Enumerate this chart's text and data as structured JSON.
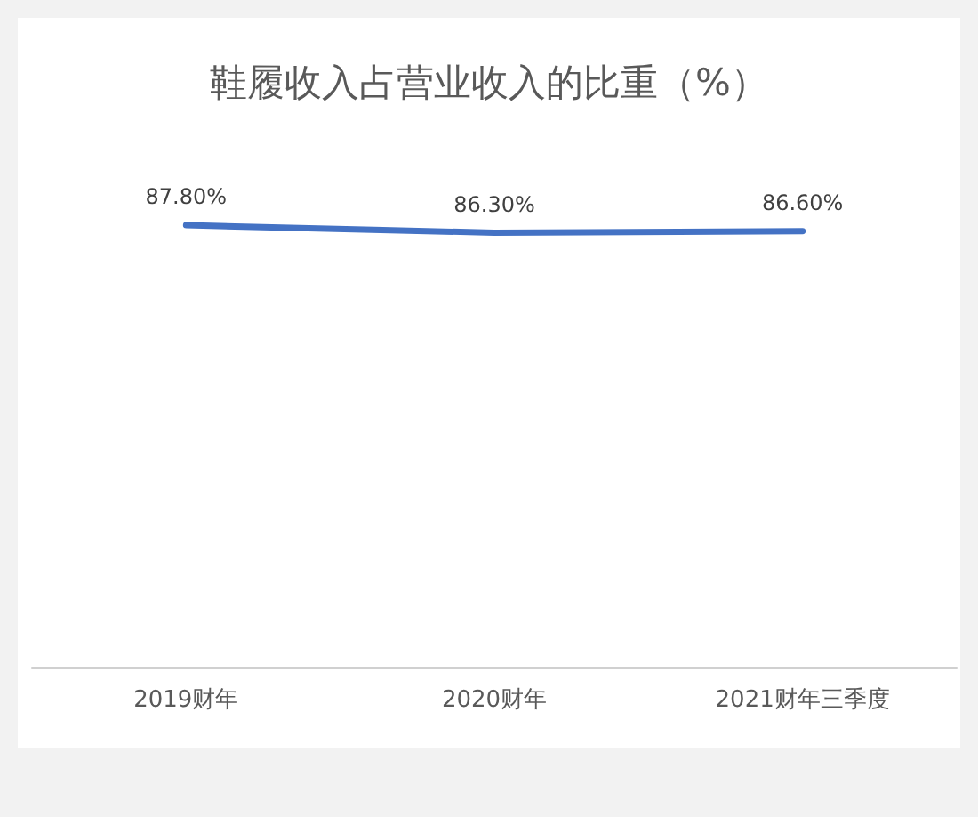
{
  "chart_data": {
    "type": "line",
    "title": "鞋履收入占营业收入的比重（%）",
    "categories": [
      "2019财年",
      "2020财年",
      "2021财年三季度"
    ],
    "series": [
      {
        "color": "#4472c4",
        "values": [
          87.8,
          86.3,
          86.6
        ],
        "value_labels": [
          "87.80%",
          "86.30%",
          "86.60%"
        ]
      }
    ],
    "tick_labels": "x",
    "marker": "none",
    "line_style": "solid"
  }
}
